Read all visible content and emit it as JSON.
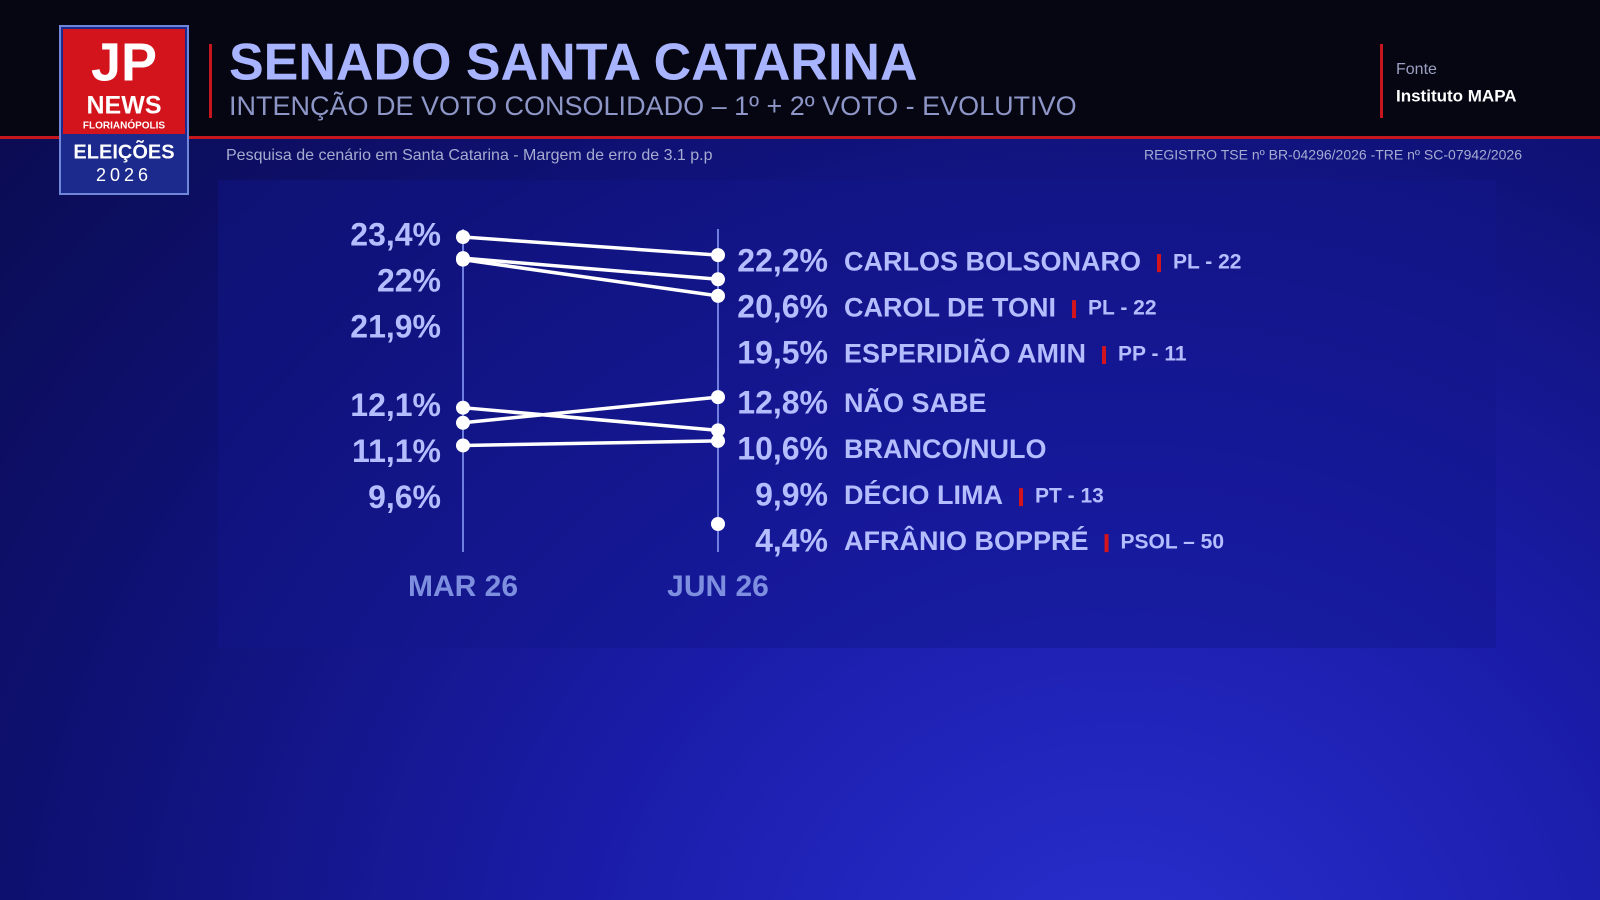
{
  "header": {
    "title": "SENADO SANTA CATARINA",
    "subtitle": "INTENÇÃO DE VOTO CONSOLIDADO – 1º + 2º VOTO - EVOLUTIVO",
    "source_label": "Fonte",
    "source": "Instituto MAPA",
    "note": "Pesquisa de cenário em Santa Catarina -  Margem de erro de 3.1 p.p",
    "registry": "REGISTRO TSE nº BR-04296/2026 -TRE nº SC-07942/2026"
  },
  "logo": {
    "mark": "JP",
    "brand": "NEWS",
    "city": "FLORIANÓPOLIS",
    "event": "ELEIÇÕES",
    "year": "2026"
  },
  "chart_data": {
    "type": "slope",
    "categories": [
      "MAR 26",
      "JUN 26"
    ],
    "color": "#ffffff",
    "series": [
      {
        "name": "CARLOS BOLSONARO",
        "party": "PL - 22",
        "values": [
          23.4,
          22.2
        ],
        "value_labels": [
          "23,4%",
          "22,2%"
        ]
      },
      {
        "name": "CAROL DE TONI",
        "party": "PL - 22",
        "values": [
          22,
          20.6
        ],
        "value_labels": [
          "22%",
          "20,6%"
        ]
      },
      {
        "name": "ESPERIDIÃO AMIN",
        "party": "PP - 11",
        "values": [
          21.9,
          19.5
        ],
        "value_labels": [
          "21,9%",
          "19,5%"
        ]
      },
      {
        "name": "NÃO SABE",
        "values": [
          11.1,
          12.8
        ],
        "value_labels": [
          "11,1%",
          "12,8%"
        ]
      },
      {
        "name": "BRANCO/NULO",
        "values": [
          12.1,
          10.6
        ],
        "value_labels": [
          "12,1%",
          "10,6%"
        ]
      },
      {
        "name": "DÉCIO LIMA",
        "party": "PT - 13",
        "values": [
          9.6,
          9.9
        ],
        "value_labels": [
          "9,6%",
          "9,9%"
        ]
      },
      {
        "name": "AFRÂNIO BOPPRÉ",
        "party": "PSOL – 50",
        "values": [
          null,
          4.4
        ],
        "value_labels": [
          null,
          "4,4%"
        ]
      }
    ]
  }
}
